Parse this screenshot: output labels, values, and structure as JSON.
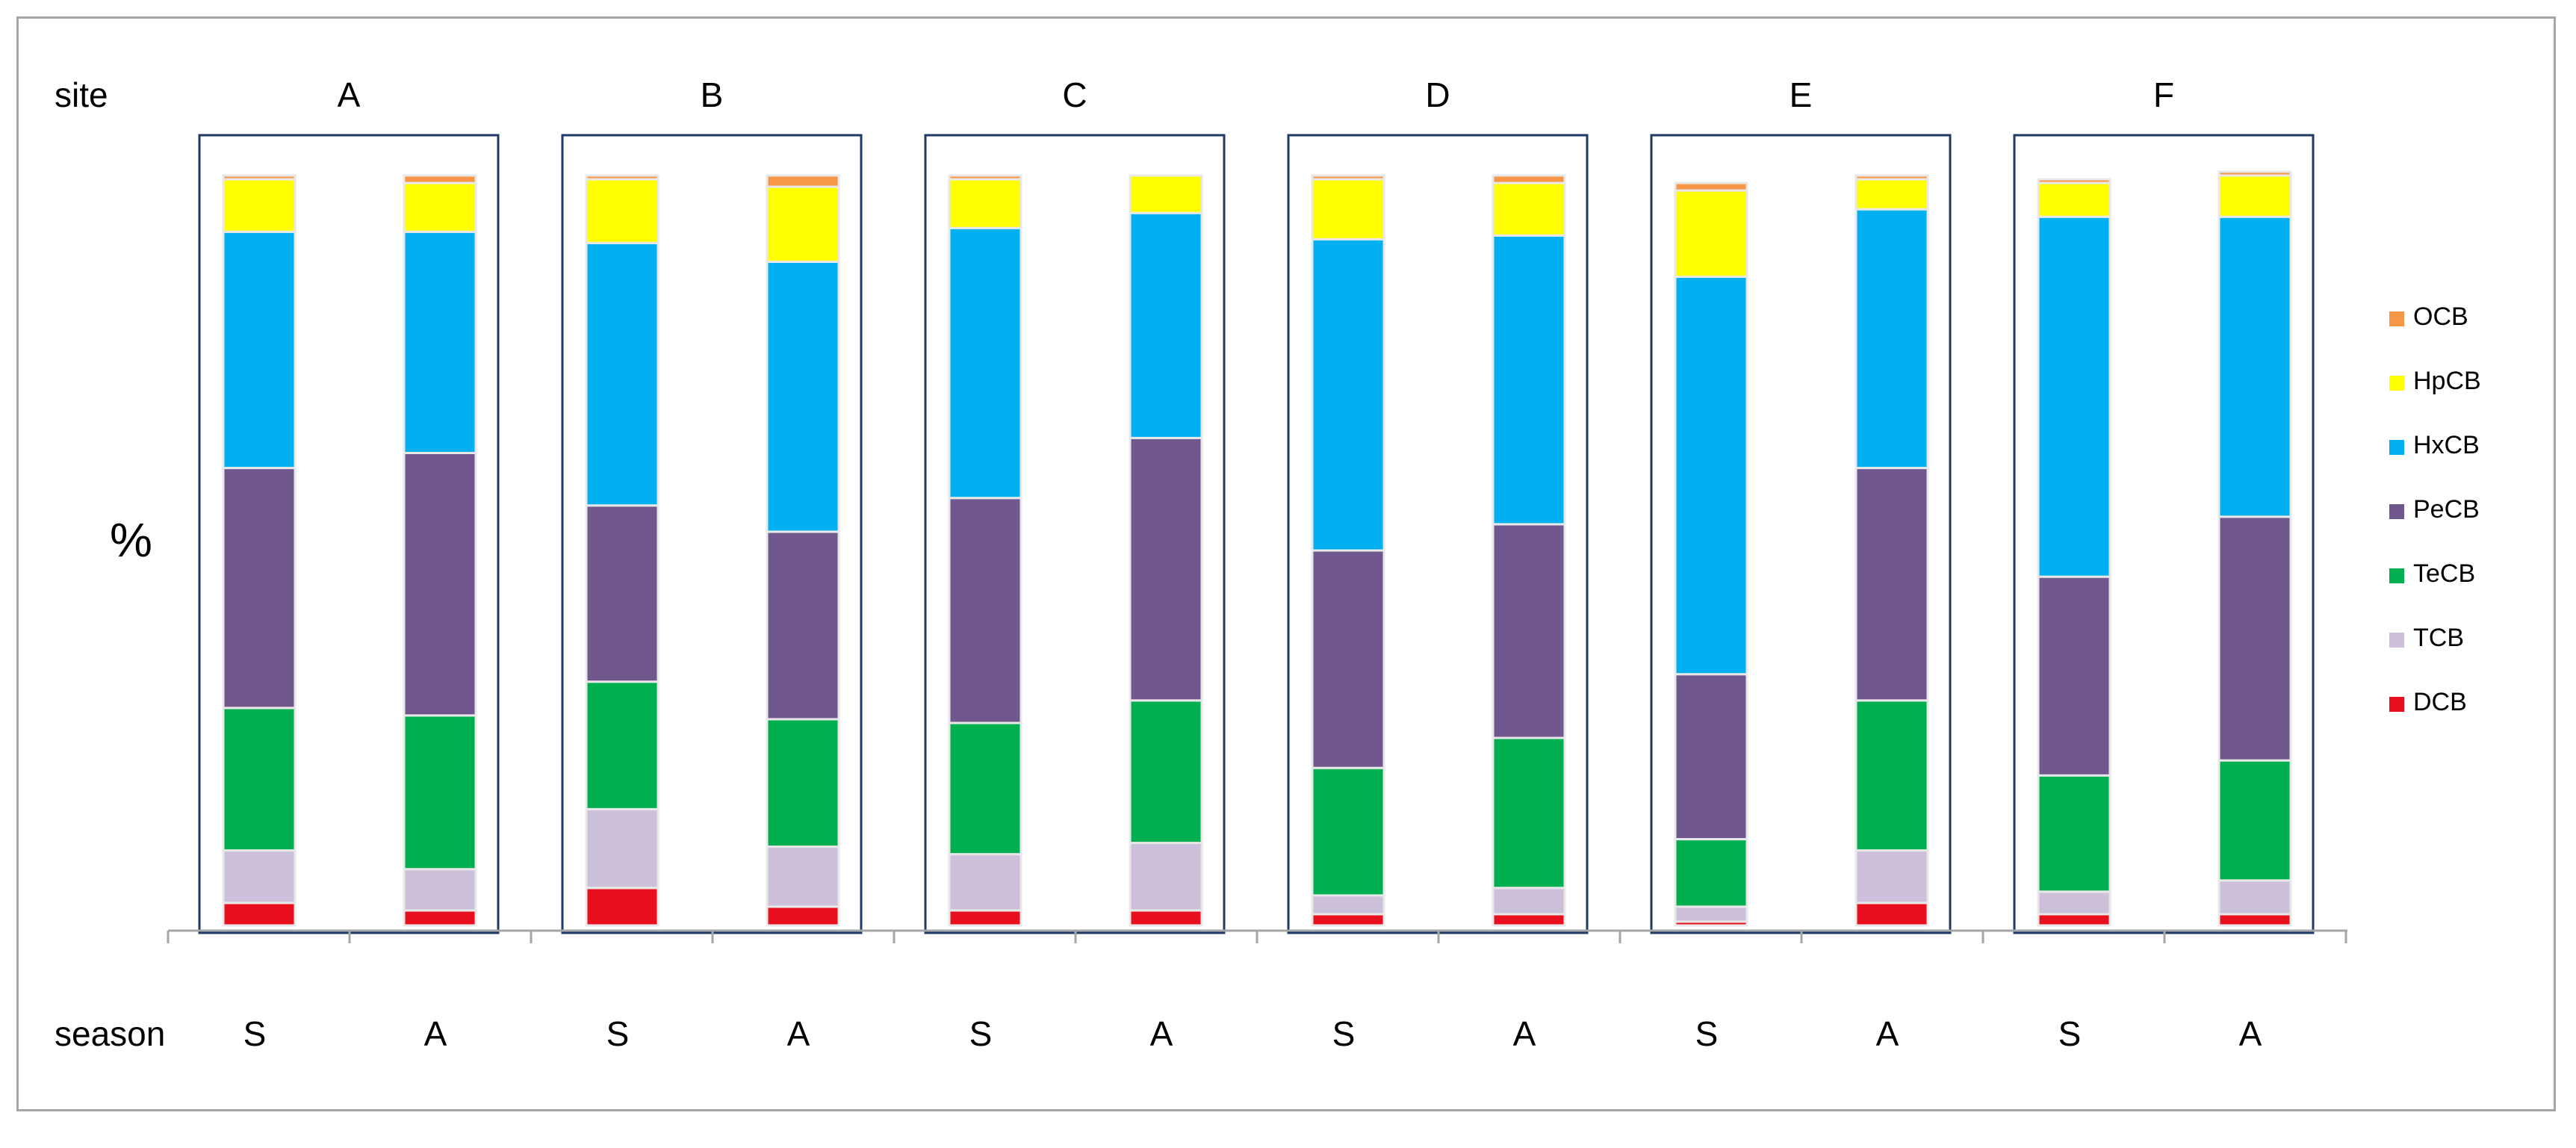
{
  "chart_data": {
    "type": "bar",
    "stacked": true,
    "normalized_percent": true,
    "title": "",
    "ylabel": "%",
    "xlabel": "",
    "ylim": [
      0,
      100
    ],
    "row_labels": {
      "site": "site",
      "season": "season"
    },
    "sites": [
      "A",
      "B",
      "C",
      "D",
      "E",
      "F"
    ],
    "seasons": [
      "S",
      "A"
    ],
    "categories": [
      "A-S",
      "A-A",
      "B-S",
      "B-A",
      "C-S",
      "C-A",
      "D-S",
      "D-A",
      "E-S",
      "E-A",
      "F-S",
      "F-A"
    ],
    "legend_position": "right",
    "series": [
      {
        "name": "DCB",
        "color": "#e8101e",
        "values": [
          3,
          2,
          5,
          2.5,
          2,
          2,
          1.5,
          1.5,
          0.5,
          3,
          1.5,
          1.5
        ]
      },
      {
        "name": "TCB",
        "color": "#ccc0da",
        "values": [
          7,
          5.5,
          10.5,
          8,
          7.5,
          9,
          2.5,
          3.5,
          2,
          7,
          3,
          4.5
        ]
      },
      {
        "name": "TeCB",
        "color": "#00b050",
        "values": [
          19,
          20.5,
          17,
          17,
          17.5,
          19,
          17,
          20,
          9,
          20,
          15.5,
          16
        ]
      },
      {
        "name": "PeCB",
        "color": "#70588f",
        "values": [
          32,
          35,
          23.5,
          25,
          30,
          35,
          29,
          28.5,
          22,
          31,
          26.5,
          32.5
        ]
      },
      {
        "name": "HxCB",
        "color": "#00b0f0",
        "values": [
          31.5,
          29.5,
          35,
          36,
          36,
          30,
          41.5,
          38.5,
          53,
          34.5,
          48,
          40
        ]
      },
      {
        "name": "HpCB",
        "color": "#ffff00",
        "values": [
          7,
          6.5,
          8.5,
          10,
          6.5,
          5,
          8,
          7,
          11.5,
          4,
          4.5,
          5.5
        ]
      },
      {
        "name": "OCB",
        "color": "#f79646",
        "values": [
          0.5,
          1,
          0.5,
          1.5,
          0.5,
          0,
          0.5,
          1,
          1,
          0.5,
          0.5,
          0.5
        ]
      }
    ]
  },
  "colors": {
    "site_box": "#1f3a66",
    "axis": "#a6a6a6",
    "bar_edge": "#e8e8e8"
  }
}
